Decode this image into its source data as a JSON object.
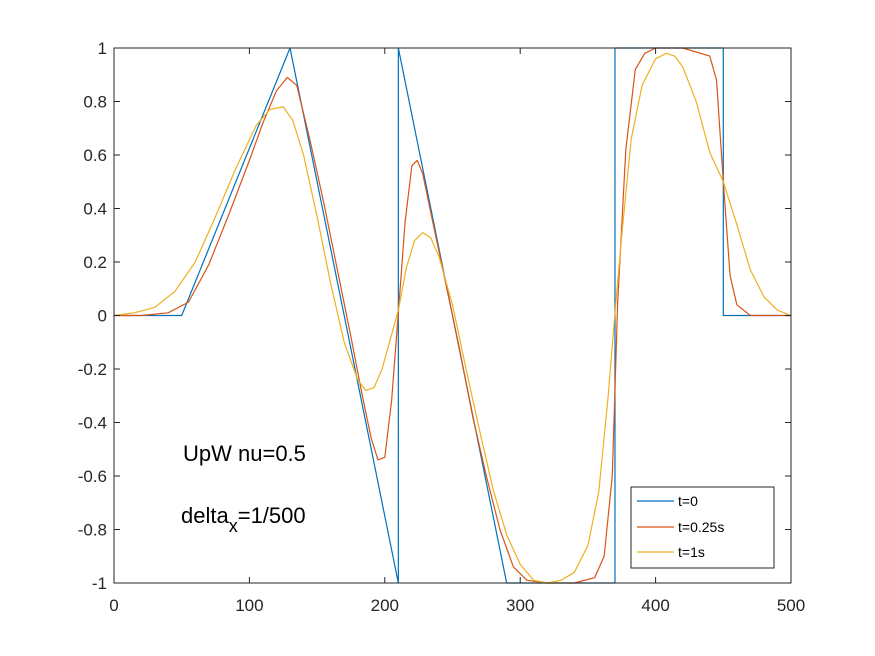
{
  "chart_data": {
    "type": "line",
    "xlim": [
      0,
      500
    ],
    "ylim": [
      -1,
      1
    ],
    "x_ticks": [
      "0",
      "100",
      "200",
      "300",
      "400",
      "500"
    ],
    "y_ticks": [
      "1",
      "0.8",
      "0.6",
      "0.4",
      "0.2",
      "0",
      "-0.2",
      "-0.4",
      "-0.6",
      "-0.8",
      "-1"
    ],
    "grid": false,
    "legend_position": "bottom-right",
    "annotations": {
      "line1": "UpW nu=0.5",
      "line2_main": "delta",
      "line2_sub": "x",
      "line2_rest": "=1/500"
    },
    "series": [
      {
        "name": "t=0",
        "color": "#0072BD",
        "x": [
          0,
          50,
          130,
          210,
          210,
          290,
          370,
          370,
          450,
          450,
          500
        ],
        "y": [
          0,
          0,
          1,
          -1,
          1,
          -1,
          -1,
          1,
          1,
          0,
          0
        ]
      },
      {
        "name": "t=0.25s",
        "color": "#D95319",
        "x": [
          0,
          20,
          40,
          55,
          70,
          85,
          100,
          110,
          120,
          128,
          135,
          145,
          155,
          165,
          175,
          183,
          190,
          195,
          200,
          205,
          210,
          215,
          220,
          224,
          228,
          235,
          245,
          255,
          265,
          275,
          285,
          295,
          305,
          320,
          340,
          355,
          362,
          368,
          372,
          378,
          385,
          392,
          400,
          420,
          440,
          445,
          450,
          455,
          460,
          470,
          480,
          500
        ],
        "y": [
          0,
          0,
          0.01,
          0.05,
          0.19,
          0.38,
          0.58,
          0.72,
          0.84,
          0.89,
          0.86,
          0.65,
          0.42,
          0.17,
          -0.08,
          -0.29,
          -0.46,
          -0.54,
          -0.53,
          -0.32,
          0.01,
          0.35,
          0.56,
          0.58,
          0.53,
          0.36,
          0.12,
          -0.12,
          -0.38,
          -0.6,
          -0.8,
          -0.94,
          -0.99,
          -1,
          -1,
          -0.98,
          -0.9,
          -0.6,
          0.05,
          0.62,
          0.92,
          0.98,
          1,
          1,
          0.97,
          0.88,
          0.5,
          0.15,
          0.04,
          0,
          0,
          0
        ]
      },
      {
        "name": "t=1s",
        "color": "#EDB120",
        "x": [
          0,
          15,
          30,
          45,
          60,
          75,
          90,
          105,
          115,
          125,
          132,
          140,
          150,
          160,
          170,
          180,
          186,
          192,
          198,
          204,
          210,
          216,
          222,
          228,
          234,
          240,
          250,
          260,
          270,
          280,
          290,
          300,
          310,
          320,
          330,
          340,
          350,
          358,
          365,
          370,
          375,
          382,
          390,
          400,
          408,
          414,
          420,
          430,
          440,
          450,
          460,
          470,
          480,
          490,
          500
        ],
        "y": [
          0,
          0.01,
          0.03,
          0.09,
          0.2,
          0.37,
          0.55,
          0.71,
          0.77,
          0.78,
          0.73,
          0.6,
          0.37,
          0.12,
          -0.1,
          -0.24,
          -0.28,
          -0.27,
          -0.2,
          -0.09,
          0.02,
          0.18,
          0.28,
          0.31,
          0.29,
          0.22,
          0.04,
          -0.2,
          -0.43,
          -0.65,
          -0.82,
          -0.93,
          -0.99,
          -1,
          -0.99,
          -0.96,
          -0.86,
          -0.66,
          -0.3,
          0.01,
          0.3,
          0.66,
          0.86,
          0.96,
          0.98,
          0.97,
          0.93,
          0.8,
          0.61,
          0.5,
          0.34,
          0.17,
          0.07,
          0.02,
          0
        ]
      }
    ]
  }
}
